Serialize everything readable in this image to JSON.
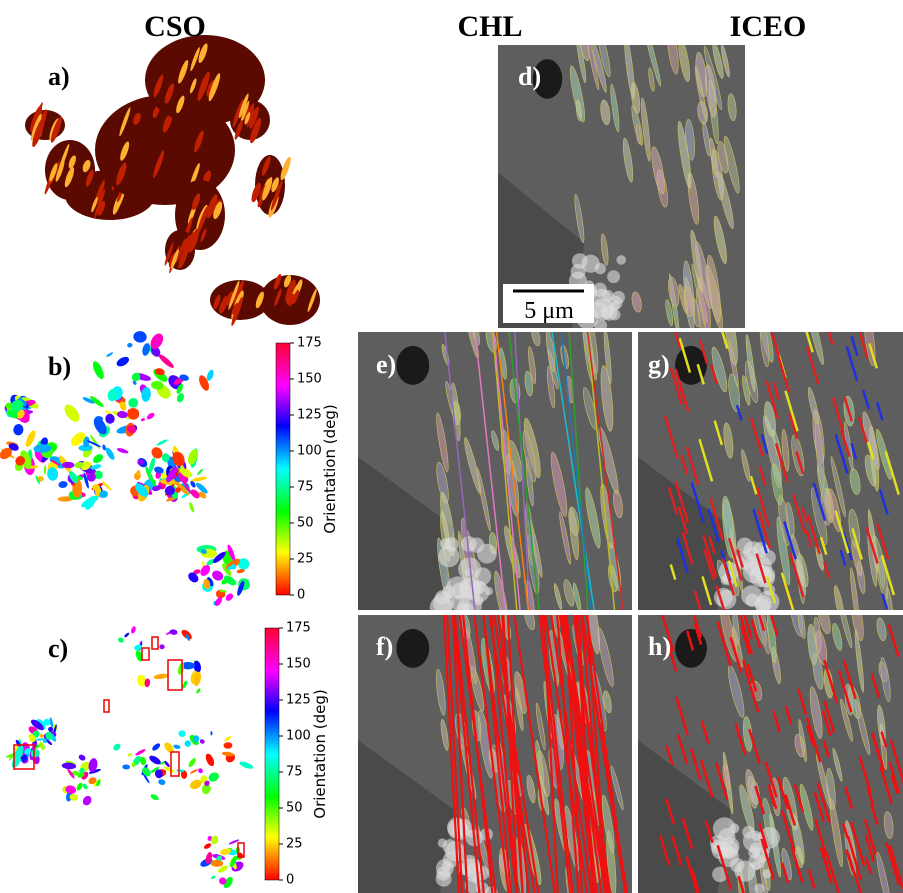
{
  "headers": [
    "CSO",
    "CHL",
    "ICEO"
  ],
  "panel_labels": [
    "a)",
    "b)",
    "c)",
    "d)",
    "e)",
    "f)",
    "g)",
    "h)"
  ],
  "scale_bar": "5 μm",
  "colorbars": [
    {
      "label": "Orientation (deg)",
      "ticks": [
        0,
        25,
        50,
        75,
        100,
        125,
        150,
        175
      ]
    },
    {
      "label": "Orientation (deg)",
      "ticks": [
        0,
        25,
        50,
        75,
        100,
        125,
        150,
        175
      ]
    }
  ]
}
